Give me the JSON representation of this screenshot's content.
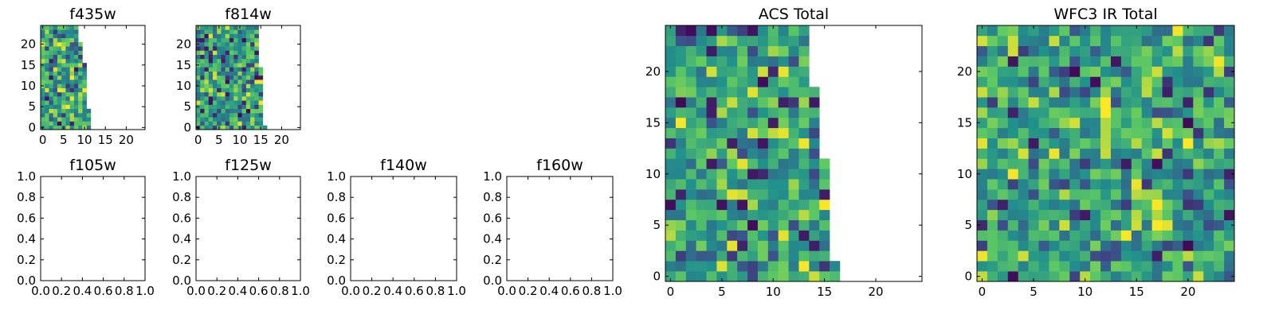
{
  "figure": {
    "background": "#ffffff"
  },
  "colormap": {
    "name": "viridis",
    "stops": [
      "#440154",
      "#3b528b",
      "#21918c",
      "#5ec962",
      "#fde725"
    ]
  },
  "chart_data": [
    {
      "id": "f435w",
      "type": "heatmap",
      "title": "f435w",
      "grid": false,
      "xlim": [
        -0.5,
        24.5
      ],
      "ylim": [
        -0.5,
        24.5
      ],
      "xticks": [
        0,
        5,
        10,
        15,
        20
      ],
      "yticks": [
        0,
        5,
        10,
        15,
        20
      ],
      "xtick_labels": [
        "0",
        "5",
        "10",
        "15",
        "20"
      ],
      "ytick_labels": [
        "0",
        "5",
        "10",
        "15",
        "20"
      ],
      "rows": 25,
      "cols": 25,
      "filled_cols_per_row": [
        12,
        12,
        12,
        12,
        12,
        11,
        11,
        11,
        11,
        11,
        11,
        11,
        11,
        11,
        11,
        11,
        10,
        10,
        10,
        10,
        10,
        9,
        9,
        9,
        9
      ],
      "value_range": [
        0,
        1
      ],
      "seed": 435
    },
    {
      "id": "f814w",
      "type": "heatmap",
      "title": "f814w",
      "grid": false,
      "xlim": [
        -0.5,
        24.5
      ],
      "ylim": [
        -0.5,
        24.5
      ],
      "xticks": [
        0,
        5,
        10,
        15,
        20
      ],
      "yticks": [
        0,
        5,
        10,
        15,
        20
      ],
      "xtick_labels": [
        "0",
        "5",
        "10",
        "15",
        "20"
      ],
      "ytick_labels": [
        "0",
        "5",
        "10",
        "15",
        "20"
      ],
      "rows": 25,
      "cols": 25,
      "filled_cols_per_row": [
        17,
        16,
        16,
        16,
        16,
        16,
        16,
        16,
        16,
        16,
        16,
        16,
        16,
        16,
        16,
        15,
        15,
        15,
        15,
        15,
        15,
        15,
        15,
        15,
        15
      ],
      "value_range": [
        0,
        1
      ],
      "seed": 814
    },
    {
      "id": "f105w",
      "type": "heatmap",
      "title": "f105w",
      "grid": false,
      "xlim": [
        0,
        1
      ],
      "ylim": [
        0,
        1
      ],
      "xticks": [
        0,
        0.2,
        0.4,
        0.6,
        0.8,
        1.0
      ],
      "yticks": [
        0,
        0.2,
        0.4,
        0.6,
        0.8,
        1.0
      ],
      "xtick_labels": [
        "0.0",
        "0.2",
        "0.4",
        "0.6",
        "0.8",
        "1.0"
      ],
      "ytick_labels": [
        "0.0",
        "0.2",
        "0.4",
        "0.6",
        "0.8",
        "1.0"
      ],
      "rows": 0,
      "cols": 0
    },
    {
      "id": "f125w",
      "type": "heatmap",
      "title": "f125w",
      "grid": false,
      "xlim": [
        0,
        1
      ],
      "ylim": [
        0,
        1
      ],
      "xticks": [
        0,
        0.2,
        0.4,
        0.6,
        0.8,
        1.0
      ],
      "yticks": [
        0,
        0.2,
        0.4,
        0.6,
        0.8,
        1.0
      ],
      "xtick_labels": [
        "0.0",
        "0.2",
        "0.4",
        "0.6",
        "0.8",
        "1.0"
      ],
      "ytick_labels": [
        "0.0",
        "0.2",
        "0.4",
        "0.6",
        "0.8",
        "1.0"
      ],
      "rows": 0,
      "cols": 0
    },
    {
      "id": "f140w",
      "type": "heatmap",
      "title": "f140w",
      "grid": false,
      "xlim": [
        0,
        1
      ],
      "ylim": [
        0,
        1
      ],
      "xticks": [
        0,
        0.2,
        0.4,
        0.6,
        0.8,
        1.0
      ],
      "yticks": [
        0,
        0.2,
        0.4,
        0.6,
        0.8,
        1.0
      ],
      "xtick_labels": [
        "0.0",
        "0.2",
        "0.4",
        "0.6",
        "0.8",
        "1.0"
      ],
      "ytick_labels": [
        "0.0",
        "0.2",
        "0.4",
        "0.6",
        "0.8",
        "1.0"
      ],
      "rows": 0,
      "cols": 0
    },
    {
      "id": "f160w",
      "type": "heatmap",
      "title": "f160w",
      "grid": false,
      "xlim": [
        0,
        1
      ],
      "ylim": [
        0,
        1
      ],
      "xticks": [
        0,
        0.2,
        0.4,
        0.6,
        0.8,
        1.0
      ],
      "yticks": [
        0,
        0.2,
        0.4,
        0.6,
        0.8,
        1.0
      ],
      "xtick_labels": [
        "0.0",
        "0.2",
        "0.4",
        "0.6",
        "0.8",
        "1.0"
      ],
      "ytick_labels": [
        "0.0",
        "0.2",
        "0.4",
        "0.6",
        "0.8",
        "1.0"
      ],
      "rows": 0,
      "cols": 0
    },
    {
      "id": "acs-total",
      "type": "heatmap",
      "title": "ACS Total",
      "grid": false,
      "xlim": [
        -0.5,
        24.5
      ],
      "ylim": [
        -0.5,
        24.5
      ],
      "xticks": [
        0,
        5,
        10,
        15,
        20
      ],
      "yticks": [
        0,
        5,
        10,
        15,
        20
      ],
      "xtick_labels": [
        "0",
        "5",
        "10",
        "15",
        "20"
      ],
      "ytick_labels": [
        "0",
        "5",
        "10",
        "15",
        "20"
      ],
      "rows": 25,
      "cols": 25,
      "filled_cols_per_row": [
        17,
        17,
        16,
        16,
        16,
        16,
        16,
        16,
        16,
        16,
        16,
        16,
        15,
        15,
        15,
        15,
        15,
        15,
        15,
        14,
        14,
        14,
        14,
        14,
        14
      ],
      "value_range": [
        0,
        1
      ],
      "seed": 777
    },
    {
      "id": "wfc3-ir-total",
      "type": "heatmap",
      "title": "WFC3 IR Total",
      "grid": false,
      "xlim": [
        -0.5,
        24.5
      ],
      "ylim": [
        -0.5,
        24.5
      ],
      "xticks": [
        0,
        5,
        10,
        15,
        20
      ],
      "yticks": [
        0,
        5,
        10,
        15,
        20
      ],
      "xtick_labels": [
        "0",
        "5",
        "10",
        "15",
        "20"
      ],
      "ytick_labels": [
        "0",
        "5",
        "10",
        "15",
        "20"
      ],
      "rows": 25,
      "cols": 25,
      "filled_cols_per_row": [
        25,
        25,
        25,
        25,
        25,
        25,
        25,
        25,
        25,
        25,
        25,
        25,
        25,
        25,
        25,
        25,
        25,
        25,
        25,
        25,
        25,
        25,
        25,
        25,
        25
      ],
      "value_range": [
        0,
        1
      ],
      "seed": 3160,
      "hotspots": [
        {
          "col": 16,
          "row": 7,
          "radius": 1.6,
          "boost": 0.45
        },
        {
          "col": 12,
          "row": 16.5,
          "radius": 1.4,
          "boost": 0.45
        },
        {
          "col": 12,
          "row": 12.5,
          "radius": 1.3,
          "boost": 0.4
        },
        {
          "col": 16,
          "row": 18.5,
          "radius": 1.0,
          "boost": 0.35
        }
      ]
    }
  ]
}
